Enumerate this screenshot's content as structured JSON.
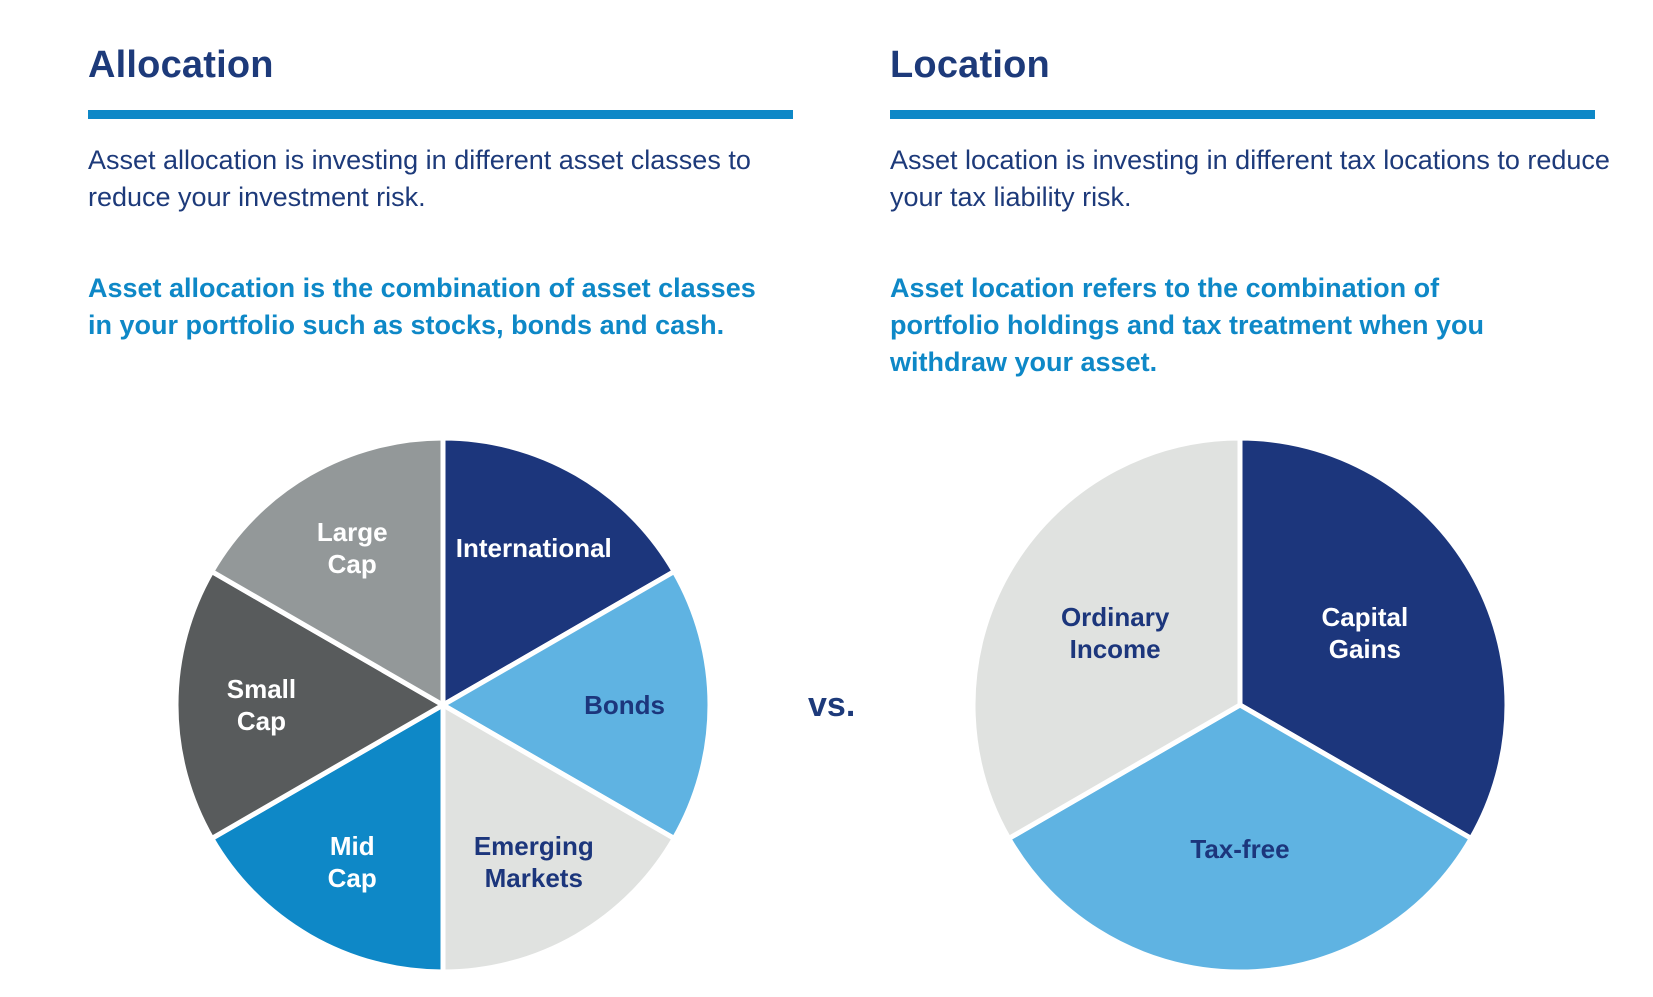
{
  "colors": {
    "navy": "#1c367c",
    "rule": "#0e88c7",
    "subtext": "#0e88c7"
  },
  "left": {
    "title": "Allocation",
    "description": "Asset allocation is investing in different asset classes to reduce your investment risk.",
    "detail": "Asset allocation is the combination of asset classes in your portfolio such as stocks, bonds and cash."
  },
  "right": {
    "title": "Location",
    "description": "Asset location is investing in different tax locations to reduce your tax liability risk.",
    "detail": "Asset location refers to the combination of portfolio holdings and tax treatment when you withdraw your asset."
  },
  "vs_label": "vs.",
  "chart_data": [
    {
      "type": "pie",
      "start": "12 o'clock",
      "direction": "clockwise",
      "slices": [
        {
          "label": [
            "International"
          ],
          "value": 1,
          "color": "#1c367c",
          "text_color": "#ffffff"
        },
        {
          "label": [
            "Bonds"
          ],
          "value": 1,
          "color": "#5fb3e2",
          "text_color": "#1c367c"
        },
        {
          "label": [
            "Emerging",
            "Markets"
          ],
          "value": 1,
          "color": "#e0e2e0",
          "text_color": "#1c367c"
        },
        {
          "label": [
            "Mid",
            "Cap"
          ],
          "value": 1,
          "color": "#0e88c7",
          "text_color": "#ffffff"
        },
        {
          "label": [
            "Small",
            "Cap"
          ],
          "value": 1,
          "color": "#585b5c",
          "text_color": "#ffffff"
        },
        {
          "label": [
            "Large",
            "Cap"
          ],
          "value": 1,
          "color": "#939899",
          "text_color": "#ffffff"
        }
      ]
    },
    {
      "type": "pie",
      "start": "12 o'clock",
      "direction": "clockwise",
      "slices": [
        {
          "label": [
            "Capital",
            "Gains"
          ],
          "value": 1,
          "color": "#1c367c",
          "text_color": "#ffffff"
        },
        {
          "label": [
            "Tax-free"
          ],
          "value": 1,
          "color": "#5fb3e2",
          "text_color": "#1c367c"
        },
        {
          "label": [
            "Ordinary",
            "Income"
          ],
          "value": 1,
          "color": "#e0e2e0",
          "text_color": "#1c367c"
        }
      ]
    }
  ]
}
